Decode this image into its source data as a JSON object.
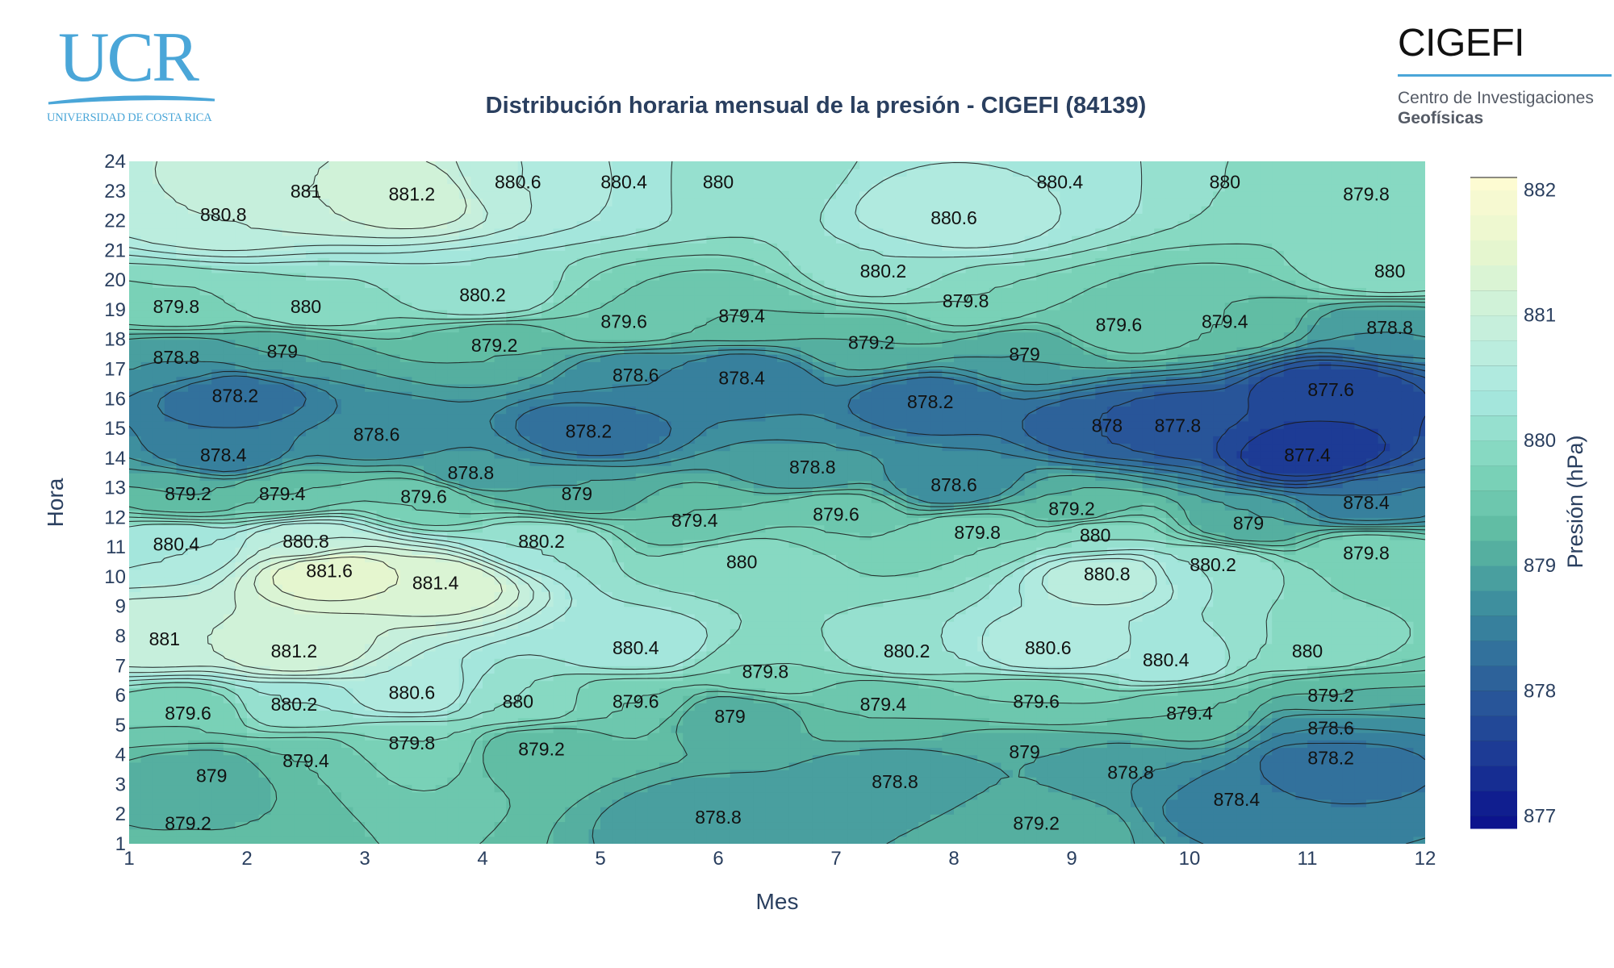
{
  "logos": {
    "ucr": {
      "mark": "UCR",
      "subtitle": "UNIVERSIDAD DE COSTA RICA",
      "color": "#4aa6d8"
    },
    "cigefi": {
      "name": "CIGEFI",
      "line1": "Centro de Investigaciones",
      "line2": "Geofísicas",
      "accent": "#4aa6d8"
    }
  },
  "chart_data": {
    "type": "heatmap",
    "subtype": "filled-contour",
    "title": "Distribución horaria mensual de la presión - CIGEFI (84139)",
    "xlabel": "Mes",
    "ylabel": "Hora",
    "xlim": [
      1,
      12
    ],
    "ylim": [
      1,
      24
    ],
    "x_ticks": [
      1,
      2,
      3,
      4,
      5,
      6,
      7,
      8,
      9,
      10,
      11,
      12
    ],
    "y_ticks": [
      1,
      2,
      3,
      4,
      5,
      6,
      7,
      8,
      9,
      10,
      11,
      12,
      13,
      14,
      15,
      16,
      17,
      18,
      19,
      20,
      21,
      22,
      23,
      24
    ],
    "colorbar": {
      "title": "Presión (hPa)",
      "ticks": [
        877,
        878,
        879,
        880,
        881,
        882
      ],
      "range": [
        876.9,
        882.1
      ],
      "contour_step": 0.2,
      "colorscale": [
        "#0a0f8c",
        "#1c3a95",
        "#2c5f9a",
        "#3a8a9e",
        "#5bb8a0",
        "#7fd6bb",
        "#a9e8e0",
        "#c8f0dc",
        "#e6f6cf",
        "#fffbd2"
      ]
    },
    "contour_labels": [
      {
        "x": 1.8,
        "y": 22.2,
        "label": "880.8"
      },
      {
        "x": 2.5,
        "y": 23,
        "label": "881"
      },
      {
        "x": 3.4,
        "y": 22.9,
        "label": "881.2"
      },
      {
        "x": 4.3,
        "y": 23.3,
        "label": "880.6"
      },
      {
        "x": 5.2,
        "y": 23.3,
        "label": "880.4"
      },
      {
        "x": 6,
        "y": 23.3,
        "label": "880"
      },
      {
        "x": 8.9,
        "y": 23.3,
        "label": "880.4"
      },
      {
        "x": 8,
        "y": 22.1,
        "label": "880.6"
      },
      {
        "x": 10.3,
        "y": 23.3,
        "label": "880"
      },
      {
        "x": 11.5,
        "y": 22.9,
        "label": "879.8"
      },
      {
        "x": 7.4,
        "y": 20.3,
        "label": "880.2"
      },
      {
        "x": 11.7,
        "y": 20.3,
        "label": "880"
      },
      {
        "x": 1.4,
        "y": 19.1,
        "label": "879.8"
      },
      {
        "x": 2.5,
        "y": 19.1,
        "label": "880"
      },
      {
        "x": 4,
        "y": 19.5,
        "label": "880.2"
      },
      {
        "x": 5.2,
        "y": 18.6,
        "label": "879.6"
      },
      {
        "x": 6.2,
        "y": 18.8,
        "label": "879.4"
      },
      {
        "x": 8.1,
        "y": 19.3,
        "label": "879.8"
      },
      {
        "x": 9.4,
        "y": 18.5,
        "label": "879.6"
      },
      {
        "x": 10.3,
        "y": 18.6,
        "label": "879.4"
      },
      {
        "x": 11.7,
        "y": 18.4,
        "label": "878.8"
      },
      {
        "x": 1.4,
        "y": 17.4,
        "label": "878.8"
      },
      {
        "x": 2.3,
        "y": 17.6,
        "label": "879"
      },
      {
        "x": 4.1,
        "y": 17.8,
        "label": "879.2"
      },
      {
        "x": 7.3,
        "y": 17.9,
        "label": "879.2"
      },
      {
        "x": 8.6,
        "y": 17.5,
        "label": "879"
      },
      {
        "x": 5.3,
        "y": 16.8,
        "label": "878.6"
      },
      {
        "x": 6.2,
        "y": 16.7,
        "label": "878.4"
      },
      {
        "x": 1.9,
        "y": 16.1,
        "label": "878.2"
      },
      {
        "x": 7.8,
        "y": 15.9,
        "label": "878.2"
      },
      {
        "x": 11.2,
        "y": 16.3,
        "label": "877.6"
      },
      {
        "x": 3.1,
        "y": 14.8,
        "label": "878.6"
      },
      {
        "x": 4.9,
        "y": 14.9,
        "label": "878.2"
      },
      {
        "x": 9.3,
        "y": 15.1,
        "label": "878"
      },
      {
        "x": 9.9,
        "y": 15.1,
        "label": "877.8"
      },
      {
        "x": 11,
        "y": 14.1,
        "label": "877.4"
      },
      {
        "x": 1.8,
        "y": 14.1,
        "label": "878.4"
      },
      {
        "x": 3.9,
        "y": 13.5,
        "label": "878.8"
      },
      {
        "x": 6.8,
        "y": 13.7,
        "label": "878.8"
      },
      {
        "x": 8,
        "y": 13.1,
        "label": "878.6"
      },
      {
        "x": 1.5,
        "y": 12.8,
        "label": "879.2"
      },
      {
        "x": 2.3,
        "y": 12.8,
        "label": "879.4"
      },
      {
        "x": 4.8,
        "y": 12.8,
        "label": "879"
      },
      {
        "x": 3.5,
        "y": 12.7,
        "label": "879.6"
      },
      {
        "x": 5.8,
        "y": 11.9,
        "label": "879.4"
      },
      {
        "x": 7,
        "y": 12.1,
        "label": "879.6"
      },
      {
        "x": 9,
        "y": 12.3,
        "label": "879.2"
      },
      {
        "x": 10.5,
        "y": 11.8,
        "label": "879"
      },
      {
        "x": 11.5,
        "y": 12.5,
        "label": "878.4"
      },
      {
        "x": 1.4,
        "y": 11.1,
        "label": "880.4"
      },
      {
        "x": 2.5,
        "y": 11.2,
        "label": "880.8"
      },
      {
        "x": 4.5,
        "y": 11.2,
        "label": "880.2"
      },
      {
        "x": 8.2,
        "y": 11.5,
        "label": "879.8"
      },
      {
        "x": 9.2,
        "y": 11.4,
        "label": "880"
      },
      {
        "x": 10.2,
        "y": 10.4,
        "label": "880.2"
      },
      {
        "x": 11.5,
        "y": 10.8,
        "label": "879.8"
      },
      {
        "x": 6.2,
        "y": 10.5,
        "label": "880"
      },
      {
        "x": 9.3,
        "y": 10.1,
        "label": "880.8"
      },
      {
        "x": 2.7,
        "y": 10.2,
        "label": "881.6"
      },
      {
        "x": 3.6,
        "y": 9.8,
        "label": "881.4"
      },
      {
        "x": 1.3,
        "y": 7.9,
        "label": "881"
      },
      {
        "x": 2.4,
        "y": 7.5,
        "label": "881.2"
      },
      {
        "x": 5.3,
        "y": 7.6,
        "label": "880.4"
      },
      {
        "x": 7.6,
        "y": 7.5,
        "label": "880.2"
      },
      {
        "x": 8.8,
        "y": 7.6,
        "label": "880.6"
      },
      {
        "x": 9.8,
        "y": 7.2,
        "label": "880.4"
      },
      {
        "x": 11,
        "y": 7.5,
        "label": "880"
      },
      {
        "x": 6.4,
        "y": 6.8,
        "label": "879.8"
      },
      {
        "x": 3.4,
        "y": 6.1,
        "label": "880.6"
      },
      {
        "x": 2.4,
        "y": 5.7,
        "label": "880.2"
      },
      {
        "x": 4.3,
        "y": 5.8,
        "label": "880"
      },
      {
        "x": 5.3,
        "y": 5.8,
        "label": "879.6"
      },
      {
        "x": 1.5,
        "y": 5.4,
        "label": "879.6"
      },
      {
        "x": 7.4,
        "y": 5.7,
        "label": "879.4"
      },
      {
        "x": 8.7,
        "y": 5.8,
        "label": "879.6"
      },
      {
        "x": 10,
        "y": 5.4,
        "label": "879.4"
      },
      {
        "x": 11.2,
        "y": 6,
        "label": "879.2"
      },
      {
        "x": 6.1,
        "y": 5.3,
        "label": "879"
      },
      {
        "x": 11.2,
        "y": 4.9,
        "label": "878.6"
      },
      {
        "x": 3.4,
        "y": 4.4,
        "label": "879.8"
      },
      {
        "x": 2.5,
        "y": 3.8,
        "label": "879.4"
      },
      {
        "x": 4.5,
        "y": 4.2,
        "label": "879.2"
      },
      {
        "x": 8.6,
        "y": 4.1,
        "label": "879"
      },
      {
        "x": 11.2,
        "y": 3.9,
        "label": "878.2"
      },
      {
        "x": 1.7,
        "y": 3.3,
        "label": "879"
      },
      {
        "x": 7.5,
        "y": 3.1,
        "label": "878.8"
      },
      {
        "x": 9.5,
        "y": 3.4,
        "label": "878.8"
      },
      {
        "x": 10.4,
        "y": 2.5,
        "label": "878.4"
      },
      {
        "x": 6,
        "y": 1.9,
        "label": "878.8"
      },
      {
        "x": 1.5,
        "y": 1.7,
        "label": "879.2"
      },
      {
        "x": 8.7,
        "y": 1.7,
        "label": "879.2"
      }
    ]
  }
}
